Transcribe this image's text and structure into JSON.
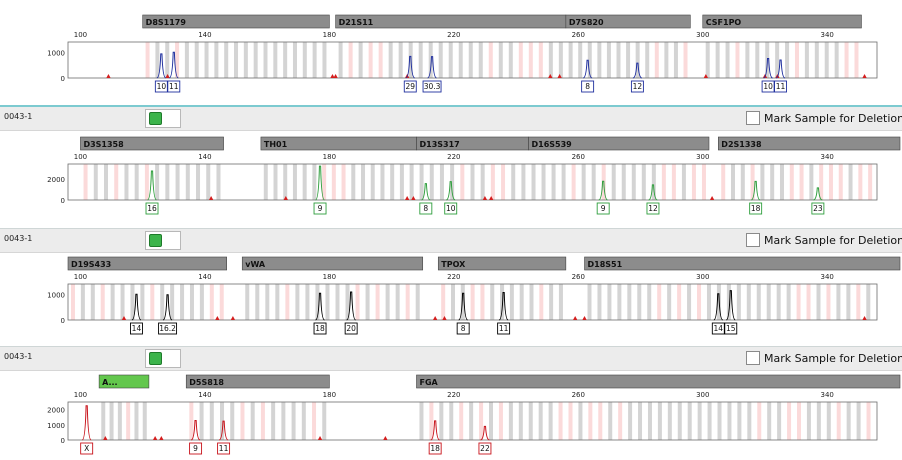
{
  "panels": [
    {
      "sample_label": "",
      "dye": "blue",
      "loci": [
        {
          "name": "D8S1179",
          "start": 120,
          "end": 180
        },
        {
          "name": "D21S11",
          "start": 182,
          "end": 256
        },
        {
          "name": "D7S820",
          "start": 256,
          "end": 296
        },
        {
          "name": "CSF1PO",
          "start": 300,
          "end": 351
        }
      ]
    },
    {
      "sample_label": "0043-1",
      "dye": "green",
      "loci": [
        {
          "name": "D3S1358",
          "start": 100,
          "end": 146
        },
        {
          "name": "TH01",
          "start": 158,
          "end": 208
        },
        {
          "name": "D13S317",
          "start": 208,
          "end": 244
        },
        {
          "name": "D16S539",
          "start": 244,
          "end": 302
        },
        {
          "name": "D2S1338",
          "start": 305,
          "end": 390
        }
      ]
    },
    {
      "sample_label": "0043-1",
      "dye": "black",
      "loci": [
        {
          "name": "D19S433",
          "start": 96,
          "end": 147
        },
        {
          "name": "vWA",
          "start": 152,
          "end": 210
        },
        {
          "name": "TPOX",
          "start": 215,
          "end": 256
        },
        {
          "name": "D18S51",
          "start": 262,
          "end": 390
        }
      ]
    },
    {
      "sample_label": "0043-1",
      "dye": "red",
      "loci": [
        {
          "name": "A...",
          "start": 106,
          "end": 122,
          "highlight": true
        },
        {
          "name": "D5S818",
          "start": 134,
          "end": 180
        },
        {
          "name": "FGA",
          "start": 208,
          "end": 390
        }
      ]
    }
  ],
  "mark_label": "Mark Sample for Deletion",
  "chart_data": [
    {
      "type": "line",
      "dye": "blue",
      "xlim": [
        96,
        356
      ],
      "ylim": [
        0,
        1400
      ],
      "xticks": [
        100,
        140,
        180,
        220,
        260,
        300,
        340
      ],
      "yticks": [
        0,
        1000
      ],
      "peaks": [
        {
          "x": 126,
          "h": 940,
          "label": "10"
        },
        {
          "x": 130,
          "h": 1000,
          "label": "11"
        },
        {
          "x": 206,
          "h": 840,
          "label": "29"
        },
        {
          "x": 213,
          "h": 830,
          "label": "30.3"
        },
        {
          "x": 263,
          "h": 690,
          "label": "8"
        },
        {
          "x": 279,
          "h": 580,
          "label": "12"
        },
        {
          "x": 321,
          "h": 760,
          "label": "10"
        },
        {
          "x": 325,
          "h": 700,
          "label": "11"
        }
      ],
      "artifacts": [
        109,
        128,
        181,
        182,
        205,
        251,
        254,
        301,
        320,
        324,
        352
      ]
    },
    {
      "type": "line",
      "dye": "green",
      "xlim": [
        96,
        356
      ],
      "ylim": [
        0,
        3400
      ],
      "xticks": [
        100,
        140,
        180,
        220,
        260,
        300,
        340
      ],
      "yticks": [
        0,
        2000
      ],
      "peaks": [
        {
          "x": 123,
          "h": 2740,
          "label": "16"
        },
        {
          "x": 177,
          "h": 3200,
          "label": "9"
        },
        {
          "x": 211,
          "h": 1550,
          "label": "8"
        },
        {
          "x": 219,
          "h": 1730,
          "label": "10"
        },
        {
          "x": 268,
          "h": 1770,
          "label": "9"
        },
        {
          "x": 284,
          "h": 1430,
          "label": "12"
        },
        {
          "x": 317,
          "h": 1760,
          "label": "18"
        },
        {
          "x": 337,
          "h": 1150,
          "label": "23"
        }
      ],
      "artifacts": [
        142,
        166,
        205,
        207,
        230,
        232,
        303
      ]
    },
    {
      "type": "line",
      "dye": "black",
      "xlim": [
        96,
        356
      ],
      "ylim": [
        0,
        1400
      ],
      "xticks": [
        100,
        140,
        180,
        220,
        260,
        300,
        340
      ],
      "yticks": [
        0,
        1000
      ],
      "peaks": [
        {
          "x": 118,
          "h": 1000,
          "label": "14"
        },
        {
          "x": 128,
          "h": 980,
          "label": "16.2"
        },
        {
          "x": 177,
          "h": 1040,
          "label": "18"
        },
        {
          "x": 187,
          "h": 1090,
          "label": "20"
        },
        {
          "x": 223,
          "h": 1040,
          "label": "8"
        },
        {
          "x": 236,
          "h": 1070,
          "label": "11"
        },
        {
          "x": 305,
          "h": 1020,
          "label": "14"
        },
        {
          "x": 309,
          "h": 1140,
          "label": "15"
        }
      ],
      "artifacts": [
        114,
        144,
        149,
        214,
        217,
        259,
        262,
        352
      ]
    },
    {
      "type": "line",
      "dye": "red",
      "xlim": [
        96,
        356
      ],
      "ylim": [
        0,
        2500
      ],
      "xticks": [
        100,
        140,
        180,
        220,
        260,
        300,
        340
      ],
      "yticks": [
        0,
        1000,
        2000
      ],
      "peaks": [
        {
          "x": 102,
          "h": 2250,
          "label": "X"
        },
        {
          "x": 137,
          "h": 1280,
          "label": "9"
        },
        {
          "x": 146,
          "h": 1240,
          "label": "11"
        },
        {
          "x": 214,
          "h": 1260,
          "label": "18"
        },
        {
          "x": 230,
          "h": 900,
          "label": "22"
        }
      ],
      "artifacts": [
        108,
        124,
        126,
        177,
        198
      ]
    }
  ]
}
